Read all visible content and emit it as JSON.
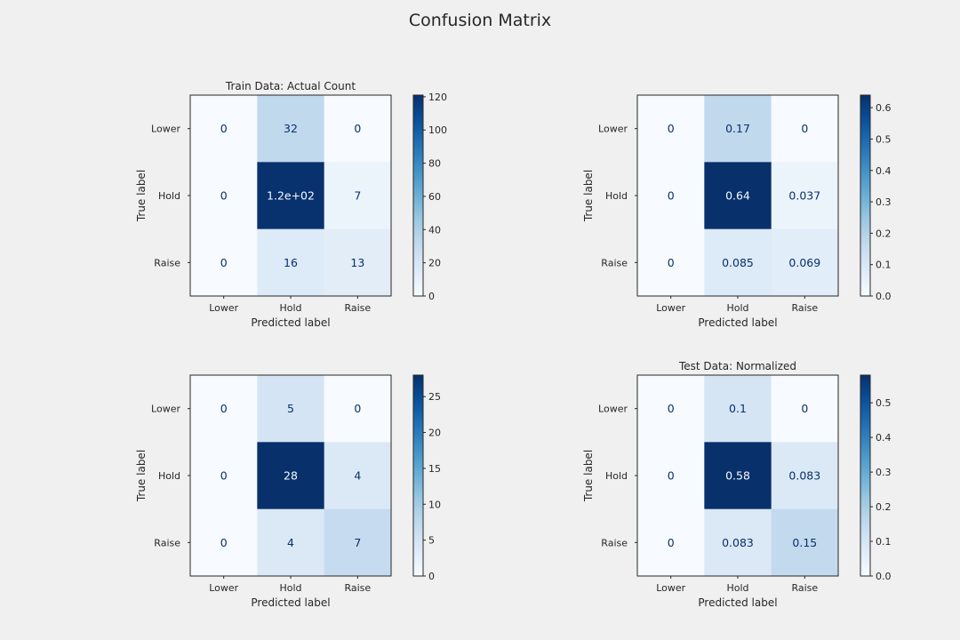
{
  "figure": {
    "title": "Confusion Matrix"
  },
  "chart_data": [
    {
      "type": "heatmap",
      "title": "Train Data: Actual Count",
      "xlabel": "Predicted label",
      "ylabel": "True label",
      "x_categories": [
        "Lower",
        "Hold",
        "Raise"
      ],
      "y_categories": [
        "Lower",
        "Hold",
        "Raise"
      ],
      "values": [
        [
          0,
          32,
          0
        ],
        [
          0,
          120,
          7
        ],
        [
          0,
          16,
          13
        ]
      ],
      "cell_labels": [
        [
          "0",
          "32",
          "0"
        ],
        [
          "0",
          "1.2e+02",
          "7"
        ],
        [
          "0",
          "16",
          "13"
        ]
      ],
      "colorbar": {
        "min": 0,
        "max": 121,
        "ticks": [
          "0",
          "20",
          "40",
          "60",
          "80",
          "100",
          "120"
        ]
      },
      "colormap": "Blues"
    },
    {
      "type": "heatmap",
      "title": "",
      "xlabel": "Predicted label",
      "ylabel": "True label",
      "x_categories": [
        "Lower",
        "Hold",
        "Raise"
      ],
      "y_categories": [
        "Lower",
        "Hold",
        "Raise"
      ],
      "values": [
        [
          0,
          0.17,
          0
        ],
        [
          0,
          0.64,
          0.037
        ],
        [
          0,
          0.085,
          0.069
        ]
      ],
      "cell_labels": [
        [
          "0",
          "0.17",
          "0"
        ],
        [
          "0",
          "0.64",
          "0.037"
        ],
        [
          "0",
          "0.085",
          "0.069"
        ]
      ],
      "colorbar": {
        "min": 0,
        "max": 0.64,
        "ticks": [
          "0.0",
          "0.1",
          "0.2",
          "0.3",
          "0.4",
          "0.5",
          "0.6"
        ]
      },
      "colormap": "Blues"
    },
    {
      "type": "heatmap",
      "title": "",
      "xlabel": "Predicted label",
      "ylabel": "True label",
      "x_categories": [
        "Lower",
        "Hold",
        "Raise"
      ],
      "y_categories": [
        "Lower",
        "Hold",
        "Raise"
      ],
      "values": [
        [
          0,
          5,
          0
        ],
        [
          0,
          28,
          4
        ],
        [
          0,
          4,
          7
        ]
      ],
      "cell_labels": [
        [
          "0",
          "5",
          "0"
        ],
        [
          "0",
          "28",
          "4"
        ],
        [
          "0",
          "4",
          "7"
        ]
      ],
      "colorbar": {
        "min": 0,
        "max": 28,
        "ticks": [
          "0",
          "5",
          "10",
          "15",
          "20",
          "25"
        ]
      },
      "colormap": "Blues"
    },
    {
      "type": "heatmap",
      "title": "Test Data: Normalized",
      "xlabel": "Predicted label",
      "ylabel": "True label",
      "x_categories": [
        "Lower",
        "Hold",
        "Raise"
      ],
      "y_categories": [
        "Lower",
        "Hold",
        "Raise"
      ],
      "values": [
        [
          0,
          0.1,
          0
        ],
        [
          0,
          0.58,
          0.083
        ],
        [
          0,
          0.083,
          0.15
        ]
      ],
      "cell_labels": [
        [
          "0",
          "0.1",
          "0"
        ],
        [
          "0",
          "0.58",
          "0.083"
        ],
        [
          "0",
          "0.083",
          "0.15"
        ]
      ],
      "colorbar": {
        "min": 0,
        "max": 0.58,
        "ticks": [
          "0.0",
          "0.1",
          "0.2",
          "0.3",
          "0.4",
          "0.5"
        ]
      },
      "colormap": "Blues"
    }
  ]
}
